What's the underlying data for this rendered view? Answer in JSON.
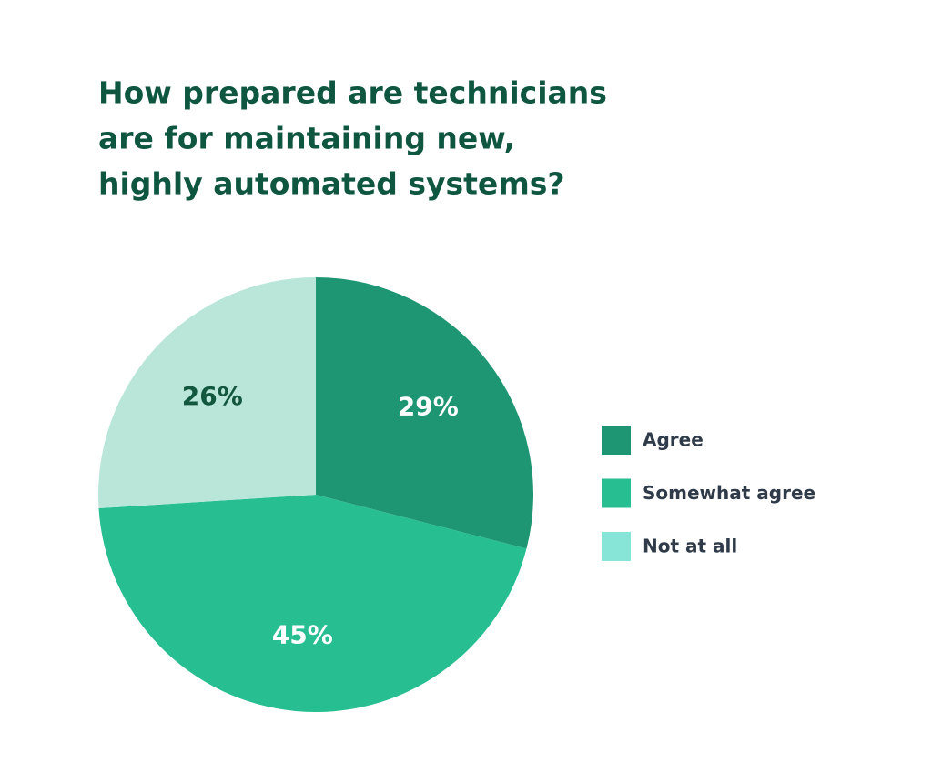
{
  "chart_data": {
    "type": "pie",
    "title": [
      "How prepared are technicians",
      "are for maintaining new,",
      "highly automated systems?"
    ],
    "categories": [
      "Agree",
      "Somewhat agree",
      "Not at all"
    ],
    "values": [
      29,
      45,
      26
    ],
    "value_labels": [
      "29%",
      "45%",
      "26%"
    ],
    "colors": [
      "#1e9673",
      "#27be92",
      "#b9e6d9"
    ],
    "legend_colors": [
      "#1e9673",
      "#27be92",
      "#86e5d6"
    ],
    "label_colors": [
      "#ffffff",
      "#ffffff",
      "#14573f"
    ]
  }
}
